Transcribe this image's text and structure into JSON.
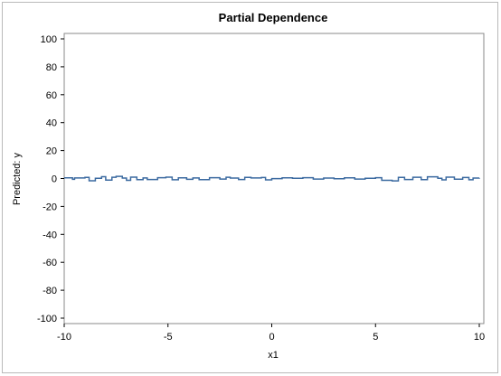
{
  "chart_data": {
    "type": "line",
    "title": "Partial Dependence",
    "xlabel": "x1",
    "ylabel": "Predicted: y",
    "xlim": [
      -10,
      10
    ],
    "ylim": [
      -100,
      100
    ],
    "xticks": [
      -10,
      -5,
      0,
      5,
      10
    ],
    "yticks": [
      100,
      80,
      60,
      40,
      20,
      0,
      -20,
      -40,
      -60,
      -80,
      -100
    ],
    "grid": false,
    "legend": "none",
    "line_color": "#3b6aa0",
    "series": [
      {
        "x": [
          -10.0,
          -9.6,
          -9.5,
          -9.0,
          -8.8,
          -8.5,
          -8.2,
          -8.0,
          -7.7,
          -7.5,
          -7.2,
          -7.0,
          -6.8,
          -6.5,
          -6.2,
          -6.0,
          -5.5,
          -5.1,
          -4.8,
          -4.5,
          -4.1,
          -3.8,
          -3.5,
          -3.0,
          -2.5,
          -2.2,
          -2.0,
          -1.6,
          -1.3,
          -1.0,
          -0.5,
          -0.3,
          0.0,
          0.5,
          1.0,
          1.5,
          2.0,
          2.5,
          3.0,
          3.5,
          4.0,
          4.5,
          5.0,
          5.3,
          5.8,
          6.1,
          6.4,
          6.8,
          7.2,
          7.5,
          8.0,
          8.2,
          8.4,
          8.8,
          9.2,
          9.5,
          9.7,
          10.0
        ],
        "y": [
          0.5,
          -0.6,
          0.4,
          0.8,
          -1.6,
          0.2,
          1.3,
          -1.1,
          0.9,
          1.5,
          0.3,
          -1.3,
          1.0,
          -0.8,
          0.4,
          -0.7,
          0.6,
          1.0,
          -0.9,
          0.5,
          -0.6,
          0.4,
          -0.8,
          0.6,
          -0.4,
          0.9,
          0.3,
          -0.7,
          0.8,
          0.4,
          0.7,
          -1.0,
          -0.1,
          0.5,
          0.2,
          0.6,
          -0.4,
          0.3,
          -0.2,
          0.5,
          -0.4,
          0.2,
          0.6,
          -1.3,
          -1.7,
          0.8,
          -0.7,
          0.9,
          -0.8,
          1.2,
          0.2,
          -1.0,
          1.0,
          -0.5,
          0.7,
          -0.9,
          0.3,
          0.4
        ]
      }
    ]
  }
}
